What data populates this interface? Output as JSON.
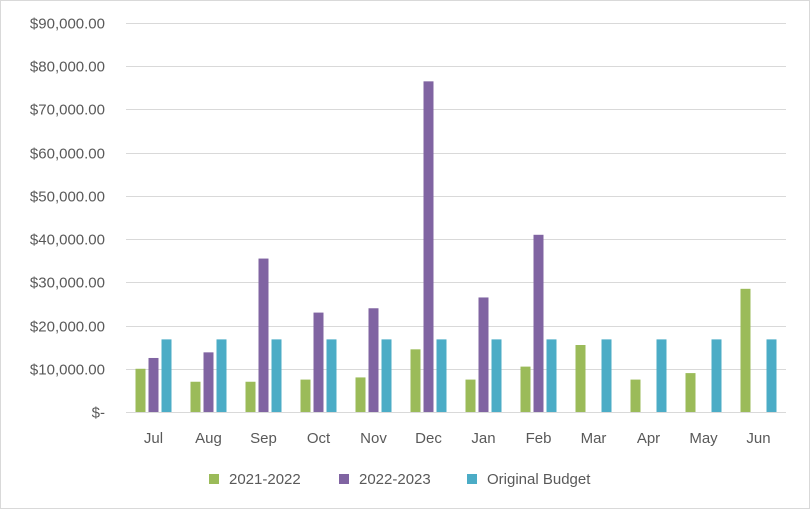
{
  "chart_data": {
    "type": "bar",
    "title": "",
    "xlabel": "",
    "ylabel": "",
    "ylim": [
      0,
      90000
    ],
    "yticks": [
      0,
      10000,
      20000,
      30000,
      40000,
      50000,
      60000,
      70000,
      80000,
      90000
    ],
    "ytick_labels": [
      "$-",
      "$10,000.00",
      "$20,000.00",
      "$30,000.00",
      "$40,000.00",
      "$50,000.00",
      "$60,000.00",
      "$70,000.00",
      "$80,000.00",
      "$90,000.00"
    ],
    "grid": true,
    "legend_position": "bottom",
    "categories": [
      "Jul",
      "Aug",
      "Sep",
      "Oct",
      "Nov",
      "Dec",
      "Jan",
      "Feb",
      "Mar",
      "Apr",
      "May",
      "Jun"
    ],
    "series": [
      {
        "name": "2021-2022",
        "color": "#9bbb59",
        "values": [
          10000,
          7000,
          7000,
          7500,
          8000,
          14500,
          7500,
          10500,
          15500,
          7500,
          9000,
          28500
        ]
      },
      {
        "name": "2022-2023",
        "color": "#8064a2",
        "values": [
          12500,
          13800,
          35500,
          23000,
          24000,
          76500,
          26500,
          41000,
          null,
          null,
          null,
          null
        ]
      },
      {
        "name": "Original Budget",
        "color": "#4bacc6",
        "values": [
          16800,
          16800,
          16800,
          16800,
          16800,
          16800,
          16800,
          16800,
          16800,
          16800,
          16800,
          16800
        ]
      }
    ]
  }
}
